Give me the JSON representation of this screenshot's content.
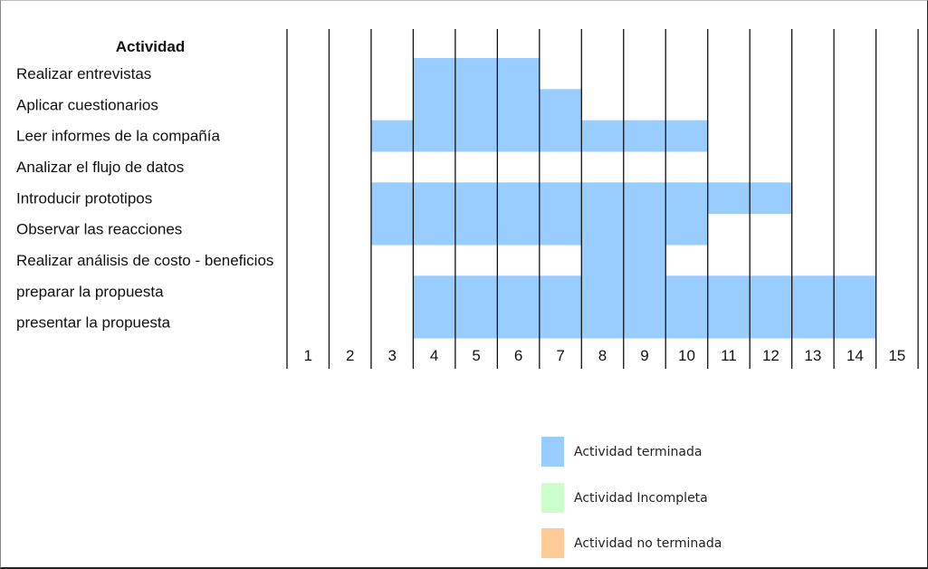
{
  "chart_data": {
    "type": "bar",
    "subtype": "gantt",
    "header": "Actividad",
    "periods": [
      "1",
      "2",
      "3",
      "4",
      "5",
      "6",
      "7",
      "8",
      "9",
      "10",
      "11",
      "12",
      "13",
      "14",
      "15"
    ],
    "tasks": [
      {
        "name": "Realizar entrevistas",
        "periods": [
          4,
          5,
          6
        ],
        "status": "terminada"
      },
      {
        "name": "Aplicar cuestionarios",
        "periods": [
          4,
          5,
          6,
          7
        ],
        "status": "terminada"
      },
      {
        "name": "Leer informes de la compañía",
        "periods": [
          3,
          4,
          5,
          6,
          7,
          8,
          9,
          10
        ],
        "status": "terminada"
      },
      {
        "name": "Analizar el flujo de datos",
        "periods": [],
        "status": "terminada"
      },
      {
        "name": "Introducir prototipos",
        "periods": [
          3,
          4,
          5,
          6,
          7,
          8,
          9,
          10,
          11,
          12
        ],
        "status": "terminada"
      },
      {
        "name": "Observar las reacciones",
        "periods": [
          3,
          4,
          5,
          6,
          7,
          8,
          9,
          10
        ],
        "status": "terminada"
      },
      {
        "name": "Realizar análisis de costo - beneficios",
        "periods": [
          8,
          9
        ],
        "status": "terminada"
      },
      {
        "name": "preparar la propuesta",
        "periods": [
          4,
          5,
          6,
          7,
          8,
          9,
          10,
          11,
          12,
          13,
          14
        ],
        "status": "terminada"
      },
      {
        "name": "presentar la propuesta",
        "periods": [
          4,
          5,
          6,
          7,
          8,
          9,
          10,
          11,
          12,
          13,
          14
        ],
        "status": "terminada"
      }
    ],
    "legend": [
      {
        "label": "Actividad terminada",
        "color": "#99CCFF"
      },
      {
        "label": "Actividad Incompleta",
        "color": "#CCFFCC"
      },
      {
        "label": "Actividad no terminada",
        "color": "#FFCC99"
      }
    ],
    "grid": true,
    "legend_position": "bottom-right"
  }
}
